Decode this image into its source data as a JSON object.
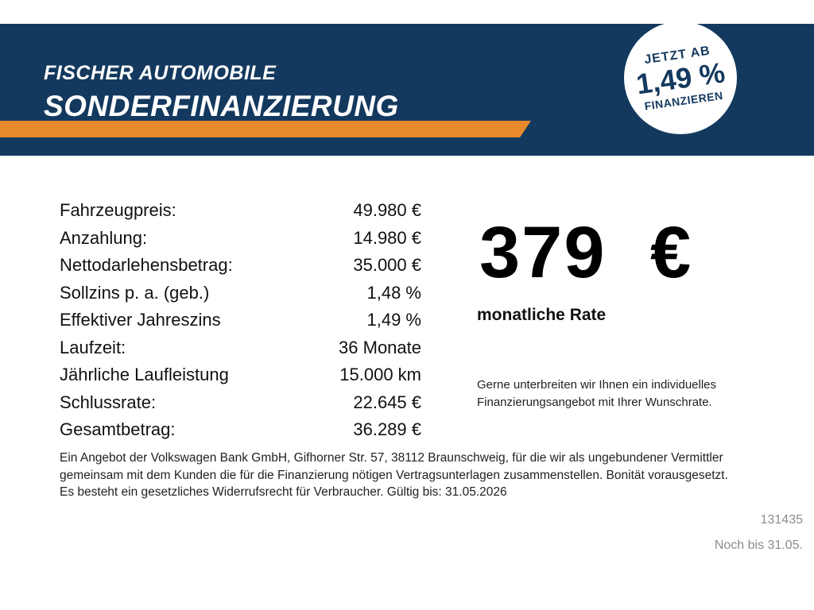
{
  "header": {
    "dealer_name": "FISCHER AUTOMOBILE",
    "title": "SONDERFINANZIERUNG",
    "badge": {
      "prefix": "JETZT AB",
      "rate": "1,49 %",
      "suffix": "FINANZIEREN"
    },
    "colors": {
      "navy": "#14395e",
      "orange": "#e8892e"
    }
  },
  "financing": {
    "rows": [
      {
        "label": "Fahrzeugpreis:",
        "value": "49.980 €"
      },
      {
        "label": "Anzahlung:",
        "value": "14.980 €"
      },
      {
        "label": "Nettodarlehensbetrag:",
        "value": "35.000 €"
      },
      {
        "label": "Sollzins p. a. (geb.)",
        "value": "1,48 %"
      },
      {
        "label": "Effektiver Jahreszins",
        "value": "1,49 %"
      },
      {
        "label": "Laufzeit:",
        "value": "36 Monate"
      },
      {
        "label": "Jährliche Laufleistung",
        "value": "15.000 km"
      },
      {
        "label": "Schlussrate:",
        "value": "22.645 €"
      },
      {
        "label": "Gesamtbetrag:",
        "value": "36.289 €"
      }
    ]
  },
  "rate": {
    "amount": "379 €",
    "caption": "monatliche Rate",
    "note": "Gerne unterbreiten wir Ihnen ein individuelles Finanzierungsangebot mit Ihrer Wunschrate."
  },
  "legal": {
    "disclaimer": "Ein Angebot der Volkswagen Bank GmbH, Gifhorner Str. 57, 38112 Braunschweig, für die wir als ungebundener Vermittler gemeinsam mit dem Kunden die für die Finanzierung nötigen Vertragsunterlagen zusammenstellen. Bonität vorausgesetzt. Es besteht ein gesetzliches Widerrufsrecht für Verbraucher. Gültig bis: 31.05.2026"
  },
  "footer": {
    "offer_id": "131435",
    "validity": "Noch bis 31.05."
  }
}
